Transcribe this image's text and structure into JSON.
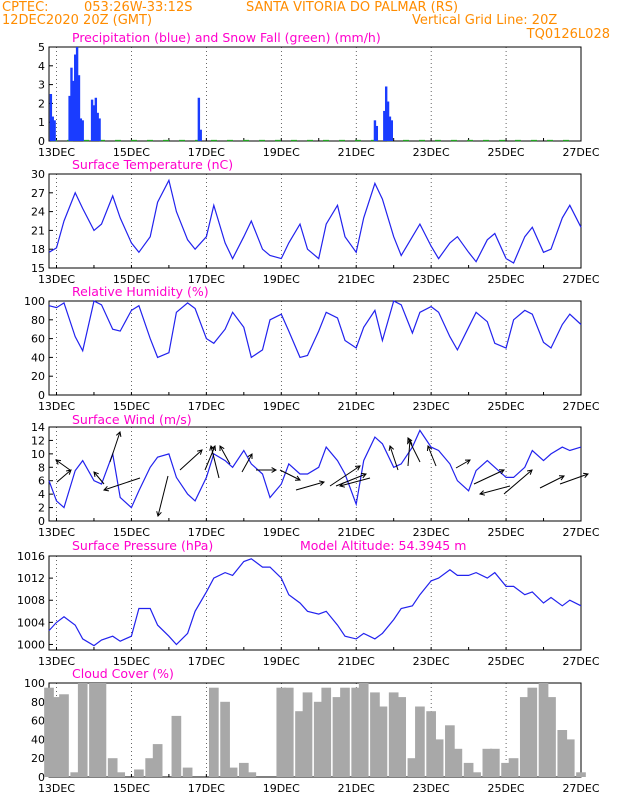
{
  "header": {
    "source": "CPTEC:",
    "coordinates": "053:26W-33:12S",
    "location": "SANTA VITORIA DO PALMAR (RS)",
    "run": "12DEC2020 20Z (GMT)",
    "grid_note": "Vertical Grid Line: 20Z",
    "code": "TQ0126L028"
  },
  "x_tick_labels": [
    "13DEC",
    "15DEC",
    "17DEC",
    "19DEC",
    "21DEC",
    "23DEC",
    "25DEC",
    "27DEC"
  ],
  "colors": {
    "header": "#ff8c00",
    "title": "#ff00cc",
    "line": "#2222ee",
    "bars": "#a8a8a8",
    "precip": "#1a3cff",
    "snow": "#22aa22"
  },
  "chart_data": [
    {
      "type": "bar",
      "title": "Precipitation (blue) and Snow Fall (green) (mm/h)",
      "ylim": [
        0,
        5
      ],
      "yticks": [
        0,
        1,
        2,
        3,
        4,
        5
      ],
      "series": [
        {
          "name": "Precipitation",
          "x": [
            12.85,
            12.9,
            12.95,
            13.35,
            13.4,
            13.45,
            13.5,
            13.55,
            13.6,
            13.65,
            13.7,
            13.95,
            14.0,
            14.05,
            14.1,
            14.15,
            16.8,
            16.85,
            21.5,
            21.55,
            21.75,
            21.8,
            21.85,
            21.9,
            21.95
          ],
          "values": [
            2.5,
            1.3,
            1.1,
            2.4,
            3.9,
            3.2,
            4.6,
            5.0,
            3.5,
            1.2,
            1.1,
            2.2,
            1.9,
            2.3,
            1.5,
            1.2,
            2.3,
            0.6,
            1.1,
            0.8,
            1.6,
            2.9,
            2.1,
            1.3,
            1.1
          ]
        }
      ]
    },
    {
      "type": "line",
      "title": "Surface Temperature (nC)",
      "ylim": [
        15,
        30
      ],
      "yticks": [
        15,
        18,
        21,
        24,
        27,
        30
      ],
      "x": [
        12.8,
        13.0,
        13.2,
        13.5,
        13.7,
        14.0,
        14.2,
        14.5,
        14.7,
        15.0,
        15.2,
        15.5,
        15.7,
        16.0,
        16.2,
        16.5,
        16.7,
        17.0,
        17.2,
        17.5,
        17.7,
        18.0,
        18.2,
        18.5,
        18.7,
        19.0,
        19.2,
        19.5,
        19.7,
        20.0,
        20.2,
        20.5,
        20.7,
        21.0,
        21.2,
        21.5,
        21.7,
        22.0,
        22.2,
        22.5,
        22.7,
        23.0,
        23.2,
        23.5,
        23.7,
        24.0,
        24.2,
        24.5,
        24.7,
        25.0,
        25.2,
        25.5,
        25.7,
        26.0,
        26.2,
        26.5,
        26.7,
        27.0
      ],
      "series": [
        {
          "name": "Temperature",
          "values": [
            17.5,
            18.2,
            22.5,
            27.0,
            24.5,
            21.0,
            22.0,
            26.5,
            23.0,
            19.0,
            17.5,
            20.0,
            25.5,
            29.0,
            24.0,
            19.5,
            18.0,
            20.0,
            25.0,
            19.0,
            16.5,
            20.0,
            22.5,
            18.0,
            17.0,
            16.5,
            19.0,
            22.0,
            18.0,
            16.5,
            22.0,
            25.0,
            20.0,
            17.5,
            23.0,
            28.5,
            26.0,
            20.0,
            17.0,
            20.0,
            22.0,
            18.5,
            16.5,
            19.0,
            20.0,
            17.5,
            16.0,
            19.5,
            20.5,
            16.5,
            15.8,
            20.0,
            21.5,
            17.5,
            18.0,
            23.0,
            25.0,
            21.5
          ]
        }
      ]
    },
    {
      "type": "line",
      "title": "Relative Humidity (%)",
      "ylim": [
        0,
        100
      ],
      "yticks": [
        0,
        20,
        40,
        60,
        80,
        100
      ],
      "x": [
        12.8,
        13.0,
        13.2,
        13.5,
        13.7,
        14.0,
        14.2,
        14.5,
        14.7,
        15.0,
        15.2,
        15.5,
        15.7,
        16.0,
        16.2,
        16.5,
        16.7,
        17.0,
        17.2,
        17.5,
        17.7,
        18.0,
        18.2,
        18.5,
        18.7,
        19.0,
        19.2,
        19.5,
        19.7,
        20.0,
        20.2,
        20.5,
        20.7,
        21.0,
        21.2,
        21.5,
        21.7,
        22.0,
        22.2,
        22.5,
        22.7,
        23.0,
        23.2,
        23.5,
        23.7,
        24.0,
        24.2,
        24.5,
        24.7,
        25.0,
        25.2,
        25.5,
        25.7,
        26.0,
        26.2,
        26.5,
        26.7,
        27.0
      ],
      "series": [
        {
          "name": "Humidity",
          "values": [
            95,
            93,
            98,
            62,
            47,
            100,
            96,
            70,
            68,
            90,
            95,
            60,
            40,
            45,
            88,
            98,
            92,
            60,
            55,
            70,
            88,
            72,
            40,
            48,
            80,
            86,
            68,
            40,
            42,
            68,
            88,
            82,
            58,
            50,
            72,
            90,
            58,
            100,
            96,
            66,
            88,
            94,
            88,
            62,
            48,
            72,
            88,
            78,
            55,
            50,
            80,
            90,
            86,
            56,
            50,
            75,
            86,
            75
          ]
        }
      ]
    },
    {
      "type": "line",
      "title": "Surface Wind (m/s)",
      "ylim": [
        0,
        14
      ],
      "yticks": [
        0,
        2,
        4,
        6,
        8,
        10,
        12,
        14
      ],
      "x": [
        12.8,
        13.0,
        13.2,
        13.5,
        13.7,
        14.0,
        14.2,
        14.5,
        14.7,
        15.0,
        15.2,
        15.5,
        15.7,
        16.0,
        16.2,
        16.5,
        16.7,
        17.0,
        17.2,
        17.5,
        17.7,
        18.0,
        18.2,
        18.5,
        18.7,
        19.0,
        19.2,
        19.5,
        19.7,
        20.0,
        20.2,
        20.5,
        20.7,
        21.0,
        21.2,
        21.5,
        21.7,
        22.0,
        22.2,
        22.5,
        22.7,
        23.0,
        23.2,
        23.5,
        23.7,
        24.0,
        24.2,
        24.5,
        24.7,
        25.0,
        25.2,
        25.5,
        25.7,
        26.0,
        26.2,
        26.5,
        26.7,
        27.0
      ],
      "series": [
        {
          "name": "Wind speed",
          "values": [
            6.0,
            3.0,
            2.0,
            7.5,
            9.0,
            6.0,
            5.5,
            10.0,
            3.5,
            2.0,
            4.5,
            8.0,
            9.5,
            10.0,
            6.5,
            4.0,
            3.0,
            6.5,
            10.0,
            9.0,
            8.0,
            10.5,
            8.5,
            7.0,
            3.5,
            5.5,
            8.5,
            7.0,
            7.0,
            8.0,
            11.0,
            9.0,
            7.0,
            2.5,
            9.0,
            12.5,
            11.5,
            8.0,
            8.5,
            11.0,
            13.5,
            11.0,
            10.5,
            8.5,
            6.0,
            4.5,
            7.5,
            9.0,
            8.0,
            6.5,
            6.5,
            8.0,
            10.5,
            9.0,
            10.0,
            11.0,
            10.5,
            11.0
          ]
        }
      ]
    },
    {
      "type": "line",
      "title": "Surface Pressure (hPa)",
      "annotation": "Model Altitude: 54.3945 m",
      "ylim": [
        999,
        1016
      ],
      "yticks": [
        1000,
        1004,
        1008,
        1012,
        1016
      ],
      "x": [
        12.8,
        13.0,
        13.2,
        13.5,
        13.7,
        14.0,
        14.2,
        14.5,
        14.7,
        15.0,
        15.2,
        15.5,
        15.7,
        16.0,
        16.2,
        16.5,
        16.7,
        17.0,
        17.2,
        17.5,
        17.7,
        18.0,
        18.2,
        18.5,
        18.7,
        19.0,
        19.2,
        19.5,
        19.7,
        20.0,
        20.2,
        20.5,
        20.7,
        21.0,
        21.2,
        21.5,
        21.7,
        22.0,
        22.2,
        22.5,
        22.7,
        23.0,
        23.2,
        23.5,
        23.7,
        24.0,
        24.2,
        24.5,
        24.7,
        25.0,
        25.2,
        25.5,
        25.7,
        26.0,
        26.2,
        26.5,
        26.7,
        27.0
      ],
      "series": [
        {
          "name": "Pressure",
          "values": [
            1002.5,
            1004.0,
            1005.0,
            1003.5,
            1001.0,
            999.8,
            1000.8,
            1001.5,
            1000.6,
            1001.5,
            1006.5,
            1006.5,
            1003.5,
            1001.5,
            1000.0,
            1002.0,
            1006.0,
            1009.5,
            1012.0,
            1013.0,
            1012.5,
            1015.0,
            1015.5,
            1014.0,
            1014.0,
            1012.0,
            1009.0,
            1007.5,
            1006.0,
            1005.5,
            1006.0,
            1003.5,
            1001.5,
            1001.0,
            1002.0,
            1001.0,
            1002.0,
            1004.5,
            1006.5,
            1007.0,
            1009.0,
            1011.5,
            1012.0,
            1013.5,
            1012.5,
            1012.5,
            1013.0,
            1012.0,
            1013.0,
            1010.5,
            1010.5,
            1009.0,
            1009.5,
            1007.5,
            1008.5,
            1007.0,
            1008.0,
            1007.0
          ]
        }
      ]
    },
    {
      "type": "bar",
      "title": "Cloud Cover (%)",
      "ylim": [
        0,
        100
      ],
      "yticks": [
        0,
        20,
        40,
        60,
        80,
        100
      ],
      "x": [
        12.8,
        13.0,
        13.2,
        13.5,
        13.7,
        14.0,
        14.2,
        14.5,
        14.7,
        15.0,
        15.2,
        15.5,
        15.7,
        16.0,
        16.2,
        16.5,
        16.7,
        17.0,
        17.2,
        17.5,
        17.7,
        18.0,
        18.2,
        18.5,
        18.7,
        19.0,
        19.2,
        19.5,
        19.7,
        20.0,
        20.2,
        20.5,
        20.7,
        21.0,
        21.2,
        21.5,
        21.7,
        22.0,
        22.2,
        22.5,
        22.7,
        23.0,
        23.2,
        23.5,
        23.7,
        24.0,
        24.2,
        24.5,
        24.7,
        25.0,
        25.2,
        25.5,
        25.7,
        26.0,
        26.2,
        26.5,
        26.7,
        27.0
      ],
      "series": [
        {
          "name": "Cloud cover",
          "values": [
            95,
            85,
            88,
            5,
            100,
            100,
            100,
            20,
            5,
            0,
            8,
            20,
            35,
            0,
            65,
            10,
            0,
            0,
            95,
            80,
            10,
            15,
            5,
            0,
            0,
            95,
            95,
            70,
            90,
            80,
            95,
            85,
            95,
            95,
            100,
            90,
            75,
            90,
            85,
            20,
            75,
            70,
            40,
            55,
            30,
            15,
            5,
            30,
            30,
            15,
            20,
            85,
            95,
            100,
            85,
            50,
            40,
            5
          ]
        }
      ]
    }
  ]
}
